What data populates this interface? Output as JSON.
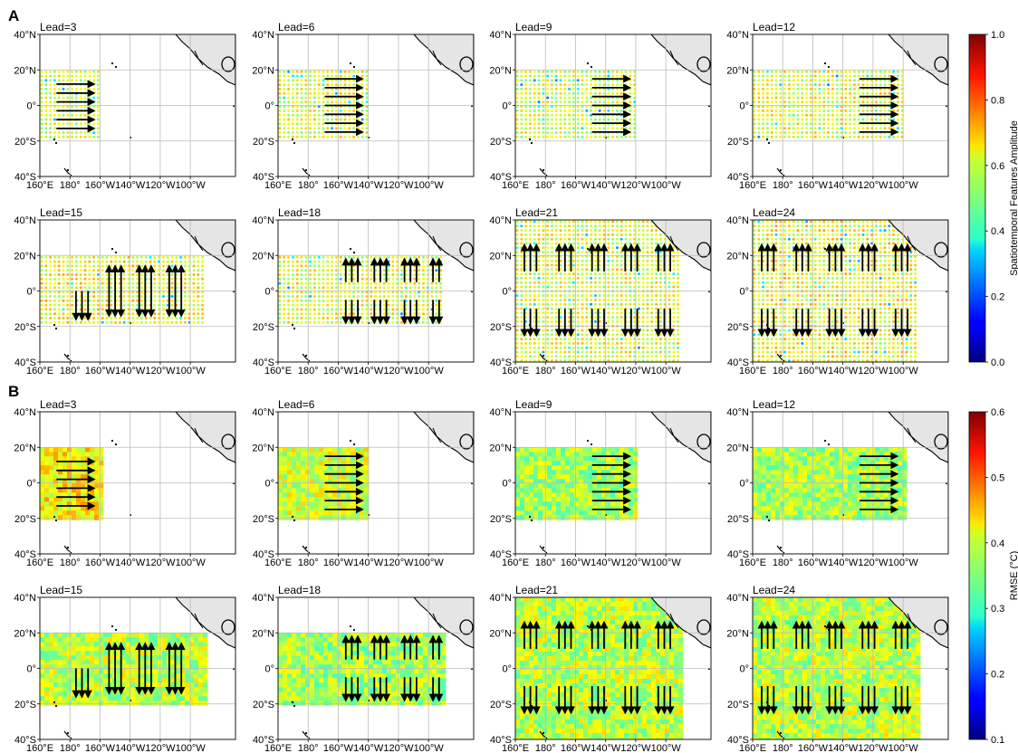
{
  "figure": {
    "sections": [
      {
        "label": "A",
        "kind": "amplitude"
      },
      {
        "label": "B",
        "kind": "rmse"
      }
    ],
    "panel_titles": [
      "Lead=3",
      "Lead=6",
      "Lead=9",
      "Lead=12",
      "Lead=15",
      "Lead=18",
      "Lead=21",
      "Lead=24"
    ],
    "map_axes": {
      "lon_labels": [
        "160°E",
        "180°",
        "160°W",
        "140°W",
        "120°W",
        "100°W"
      ],
      "lat_labels": [
        "40°N",
        "20°N",
        "0°",
        "20°S",
        "40°S"
      ]
    },
    "colorbars": [
      {
        "label": "Spatiotemporal Features Amplitude",
        "ticks": [
          "0.0",
          "0.2",
          "0.4",
          "0.6",
          "0.8",
          "1.0"
        ],
        "colormap": "jet"
      },
      {
        "label": "RMSE (°C)",
        "ticks": [
          "0.1",
          "0.2",
          "0.3",
          "0.4",
          "0.5",
          "0.6"
        ],
        "colormap": "jet"
      }
    ],
    "colors": {
      "land": "#e5e5e5",
      "coast": "#000000",
      "grid": "#bbbbbb",
      "arrow": "#000000"
    }
  },
  "chart_data": {
    "type": "map-panels",
    "lon_range": [
      160,
      290
    ],
    "lat_range": [
      -40,
      40
    ],
    "lon_ticks": [
      160,
      180,
      200,
      220,
      240,
      260
    ],
    "lat_ticks": [
      40,
      20,
      0,
      -20,
      -40
    ],
    "panels": [
      {
        "lead": 3,
        "domain_lon": [
          160,
          200
        ],
        "domain_lat": [
          -20,
          20
        ],
        "arrow_dir": "east",
        "arrow_lon": [
          171,
          196
        ],
        "amp_mean": 0.58,
        "rmse_mean": 0.42
      },
      {
        "lead": 6,
        "domain_lon": [
          160,
          220
        ],
        "domain_lat": [
          -20,
          20
        ],
        "arrow_dir": "east",
        "arrow_lon": [
          191,
          216
        ],
        "amp_mean": 0.6,
        "rmse_mean": 0.39
      },
      {
        "lead": 9,
        "domain_lon": [
          160,
          240
        ],
        "domain_lat": [
          -20,
          20
        ],
        "arrow_dir": "east",
        "arrow_lon": [
          211,
          236
        ],
        "amp_mean": 0.58,
        "rmse_mean": 0.37
      },
      {
        "lead": 12,
        "domain_lon": [
          160,
          260
        ],
        "domain_lat": [
          -20,
          20
        ],
        "arrow_dir": "east",
        "arrow_lon": [
          231,
          256
        ],
        "amp_mean": 0.6,
        "rmse_mean": 0.37
      },
      {
        "lead": 15,
        "domain_lon": [
          160,
          270
        ],
        "domain_lat": [
          -20,
          20
        ],
        "arrow_dir": "mixed",
        "arrow_lon": [
          184,
          266
        ],
        "amp_mean": 0.62,
        "rmse_mean": 0.38
      },
      {
        "lead": 18,
        "domain_lon": [
          160,
          270
        ],
        "domain_lat": [
          -20,
          20
        ],
        "arrow_dir": "split",
        "arrow_lon": [
          205,
          266
        ],
        "amp_mean": 0.6,
        "rmse_mean": 0.37
      },
      {
        "lead": 21,
        "domain_lon": [
          160,
          270
        ],
        "domain_lat": [
          -40,
          40
        ],
        "arrow_dir": "split",
        "arrow_lon": [
          166,
          266
        ],
        "amp_mean": 0.6,
        "rmse_mean": 0.38
      },
      {
        "lead": 24,
        "domain_lon": [
          160,
          270
        ],
        "domain_lat": [
          -40,
          40
        ],
        "arrow_dir": "split",
        "arrow_lon": [
          166,
          266
        ],
        "amp_mean": 0.62,
        "rmse_mean": 0.38
      }
    ]
  }
}
